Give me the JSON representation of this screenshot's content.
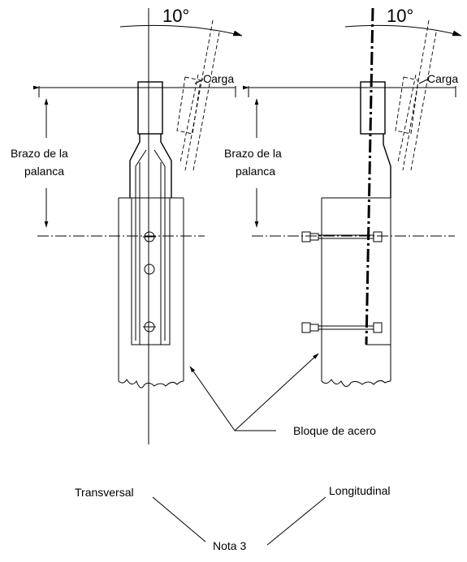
{
  "angle_labels": {
    "left": "10°",
    "right": "10°"
  },
  "load_labels": {
    "left": "Carga",
    "right": "Carga"
  },
  "lever_arm": {
    "left_line1": "Brazo de la",
    "left_line2": "palanca",
    "right_line1": "Brazo de la",
    "right_line2": "palanca"
  },
  "callout": "Bloque de acero",
  "views": {
    "transversal": "Transversal",
    "longitudinal": "Longitudinal"
  },
  "note": "Nota 3"
}
